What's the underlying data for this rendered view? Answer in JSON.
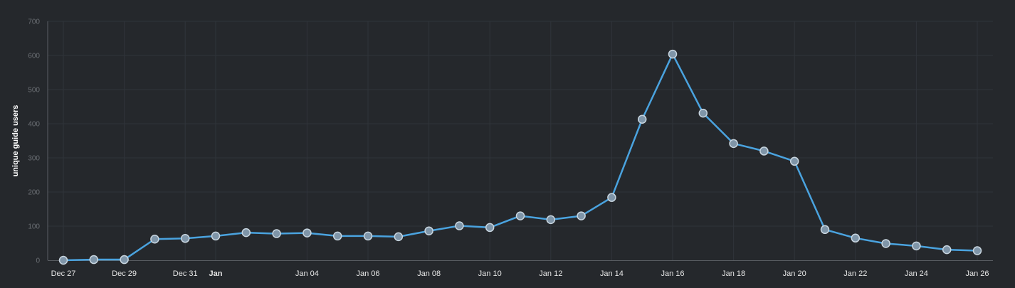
{
  "chart_data": {
    "type": "line",
    "title": "",
    "xlabel": "",
    "ylabel": "unique guide users",
    "ylim": [
      0,
      700
    ],
    "yticks": [
      0,
      100,
      200,
      300,
      400,
      500,
      600,
      700
    ],
    "grid": true,
    "x": [
      "Dec 27",
      "Dec 28",
      "Dec 29",
      "Dec 30",
      "Dec 31",
      "Jan 01",
      "Jan 02",
      "Jan 03",
      "Jan 04",
      "Jan 05",
      "Jan 06",
      "Jan 07",
      "Jan 08",
      "Jan 09",
      "Jan 10",
      "Jan 11",
      "Jan 12",
      "Jan 13",
      "Jan 14",
      "Jan 15",
      "Jan 16",
      "Jan 17",
      "Jan 18",
      "Jan 19",
      "Jan 20",
      "Jan 21",
      "Jan 22",
      "Jan 23",
      "Jan 24",
      "Jan 25",
      "Jan 26"
    ],
    "x_tick_labels": [
      "Dec 27",
      "",
      "Dec 29",
      "",
      "Dec 31",
      "Jan",
      "Jan 04",
      "",
      "Jan 06",
      "",
      "Jan 08",
      "",
      "Jan 10",
      "",
      "Jan 12",
      "",
      "Jan 14",
      "",
      "Jan 16",
      "",
      "Jan 18",
      "",
      "Jan 20",
      "",
      "Jan 22",
      "",
      "Jan 24",
      "",
      "Jan 26"
    ],
    "x_ticks": [
      {
        "label": "Dec 27",
        "day": "Dec 27",
        "bold": false
      },
      {
        "label": "Dec 29",
        "day": "Dec 29",
        "bold": false
      },
      {
        "label": "Dec 31",
        "day": "Dec 31",
        "bold": false
      },
      {
        "label": "Jan",
        "day": "Jan 01",
        "bold": true
      },
      {
        "label": "Jan 04",
        "day": "Jan 04",
        "bold": false
      },
      {
        "label": "Jan 06",
        "day": "Jan 06",
        "bold": false
      },
      {
        "label": "Jan 08",
        "day": "Jan 08",
        "bold": false
      },
      {
        "label": "Jan 10",
        "day": "Jan 10",
        "bold": false
      },
      {
        "label": "Jan 12",
        "day": "Jan 12",
        "bold": false
      },
      {
        "label": "Jan 14",
        "day": "Jan 14",
        "bold": false
      },
      {
        "label": "Jan 16",
        "day": "Jan 16",
        "bold": false
      },
      {
        "label": "Jan 18",
        "day": "Jan 18",
        "bold": false
      },
      {
        "label": "Jan 20",
        "day": "Jan 20",
        "bold": false
      },
      {
        "label": "Jan 22",
        "day": "Jan 22",
        "bold": false
      },
      {
        "label": "Jan 24",
        "day": "Jan 24",
        "bold": false
      },
      {
        "label": "Jan 26",
        "day": "Jan 26",
        "bold": false
      }
    ],
    "series": [
      {
        "values": [
          0,
          2,
          2,
          62,
          64,
          71,
          81,
          78,
          80,
          71,
          71,
          69,
          86,
          101,
          96,
          130,
          119,
          130,
          184,
          413,
          604,
          431,
          342,
          320,
          290,
          90,
          65,
          49,
          42,
          31,
          28
        ],
        "color": "#4aa3df",
        "marker_color": "#7f95a8"
      }
    ]
  }
}
